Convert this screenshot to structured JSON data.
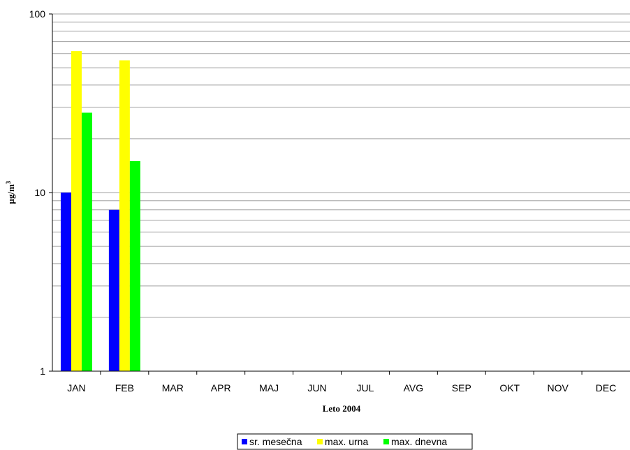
{
  "chart_data": {
    "type": "bar",
    "scale": "log",
    "ylim": [
      1,
      100
    ],
    "yticks": [
      "1",
      "10",
      "100"
    ],
    "ylabel": "µg/m",
    "ylabel_sup": "3",
    "xlabel": "Leto 2004",
    "grid": "horizontal",
    "legend_position": "bottom",
    "categories": [
      "JAN",
      "FEB",
      "MAR",
      "APR",
      "MAJ",
      "JUN",
      "JUL",
      "AVG",
      "SEP",
      "OKT",
      "NOV",
      "DEC"
    ],
    "series": [
      {
        "name": "sr. mesečna",
        "color": "#0000ff",
        "values": [
          10,
          8,
          null,
          null,
          null,
          null,
          null,
          null,
          null,
          null,
          null,
          null
        ]
      },
      {
        "name": "max. urna",
        "color": "#ffff00",
        "values": [
          62,
          55,
          null,
          null,
          null,
          null,
          null,
          null,
          null,
          null,
          null,
          null
        ]
      },
      {
        "name": "max. dnevna",
        "color": "#00ff00",
        "values": [
          28,
          15,
          null,
          null,
          null,
          null,
          null,
          null,
          null,
          null,
          null,
          null
        ]
      }
    ]
  }
}
